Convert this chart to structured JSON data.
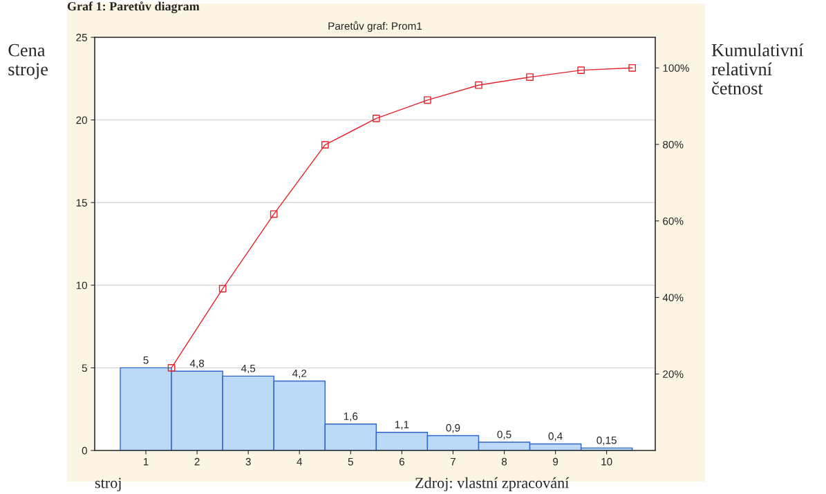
{
  "chart_data": {
    "type": "bar",
    "title": "Paretův graf: Prom1",
    "xlabel": "stroj",
    "ylabel": "Cena stroje",
    "y2label": "Kumulativní relativní četnost",
    "annotations": [
      "Graf 1: Paretův diagram",
      "Zdroj: vlastní zpracování"
    ],
    "x": [
      1,
      2,
      3,
      4,
      5,
      6,
      7,
      8,
      9,
      10
    ],
    "series": [
      {
        "color": "#bcd9f7",
        "values": [
          5,
          4.8,
          4.5,
          4.2,
          1.6,
          1.1,
          0.9,
          0.5,
          0.4,
          0.15
        ],
        "value_labels": [
          "5",
          "4,8",
          "4,5",
          "4,2",
          "1,6",
          "1,1",
          "0,9",
          "0,5",
          "0,4",
          "0,15"
        ]
      },
      {
        "type": "line",
        "axis": "y2",
        "color": "#e8202a",
        "x": [
          1.5,
          2.5,
          3.5,
          4.5,
          5.5,
          6.5,
          7.5,
          8.5,
          9.5,
          10.5
        ],
        "values": [
          21.6,
          42.3,
          61.8,
          79.9,
          86.8,
          91.6,
          95.5,
          97.6,
          99.4,
          100
        ],
        "marker": "square"
      }
    ],
    "xlim": [
      0,
      10.95
    ],
    "xticks": [
      1,
      2,
      3,
      4,
      5,
      6,
      7,
      8,
      9,
      10
    ],
    "ylim": [
      0,
      25
    ],
    "yticks": [
      0,
      5,
      10,
      15,
      20,
      25
    ],
    "y2lim": [
      0,
      108
    ],
    "y2ticks": [
      {
        "value": 20,
        "label": "20%"
      },
      {
        "value": 40,
        "label": "40%"
      },
      {
        "value": 60,
        "label": "60%"
      },
      {
        "value": 80,
        "label": "80%"
      },
      {
        "value": 100,
        "label": "100%"
      }
    ],
    "grid": "y"
  }
}
